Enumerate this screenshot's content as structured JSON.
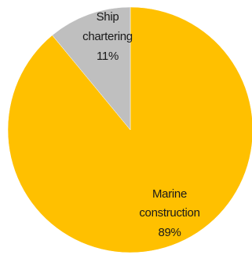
{
  "chart_data": {
    "type": "pie",
    "title": "",
    "slices": [
      {
        "name": "Marine construction",
        "label_lines": [
          "Marine",
          "construction",
          "89%"
        ],
        "value": 89,
        "color": "#ffc000"
      },
      {
        "name": "Ship chartering",
        "label_lines": [
          "Ship",
          "chartering",
          "11%"
        ],
        "value": 11,
        "color": "#bfbfbf"
      }
    ],
    "start_angle": "12 o'clock",
    "direction": "clockwise",
    "legend": "none"
  }
}
